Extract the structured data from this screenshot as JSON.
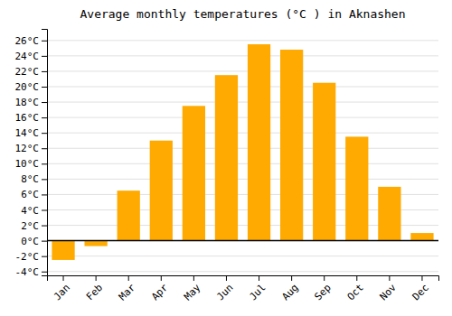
{
  "chart_data": {
    "type": "bar",
    "title": "Average monthly temperatures (°C ) in Aknashen",
    "categories": [
      "Jan",
      "Feb",
      "Mar",
      "Apr",
      "May",
      "Jun",
      "Jul",
      "Aug",
      "Sep",
      "Oct",
      "Nov",
      "Dec"
    ],
    "values": [
      -2.5,
      -0.7,
      6.5,
      13.0,
      17.5,
      21.5,
      25.5,
      24.8,
      20.5,
      13.5,
      7.0,
      1.0
    ],
    "color": "#FFAA00",
    "ylim": [
      -4.5,
      27.5
    ],
    "yticks": [
      {
        "value": -4,
        "label": "-4°C"
      },
      {
        "value": -2,
        "label": "-2°C"
      },
      {
        "value": 0,
        "label": "0°C"
      },
      {
        "value": 2,
        "label": "2°C"
      },
      {
        "value": 4,
        "label": "4°C"
      },
      {
        "value": 6,
        "label": "6°C"
      },
      {
        "value": 8,
        "label": "8°C"
      },
      {
        "value": 10,
        "label": "10°C"
      },
      {
        "value": 12,
        "label": "12°C"
      },
      {
        "value": 14,
        "label": "14°C"
      },
      {
        "value": 16,
        "label": "16°C"
      },
      {
        "value": 18,
        "label": "18°C"
      },
      {
        "value": 20,
        "label": "20°C"
      },
      {
        "value": 22,
        "label": "22°C"
      },
      {
        "value": 24,
        "label": "24°C"
      },
      {
        "value": 26,
        "label": "26°C"
      }
    ],
    "grid": true
  }
}
